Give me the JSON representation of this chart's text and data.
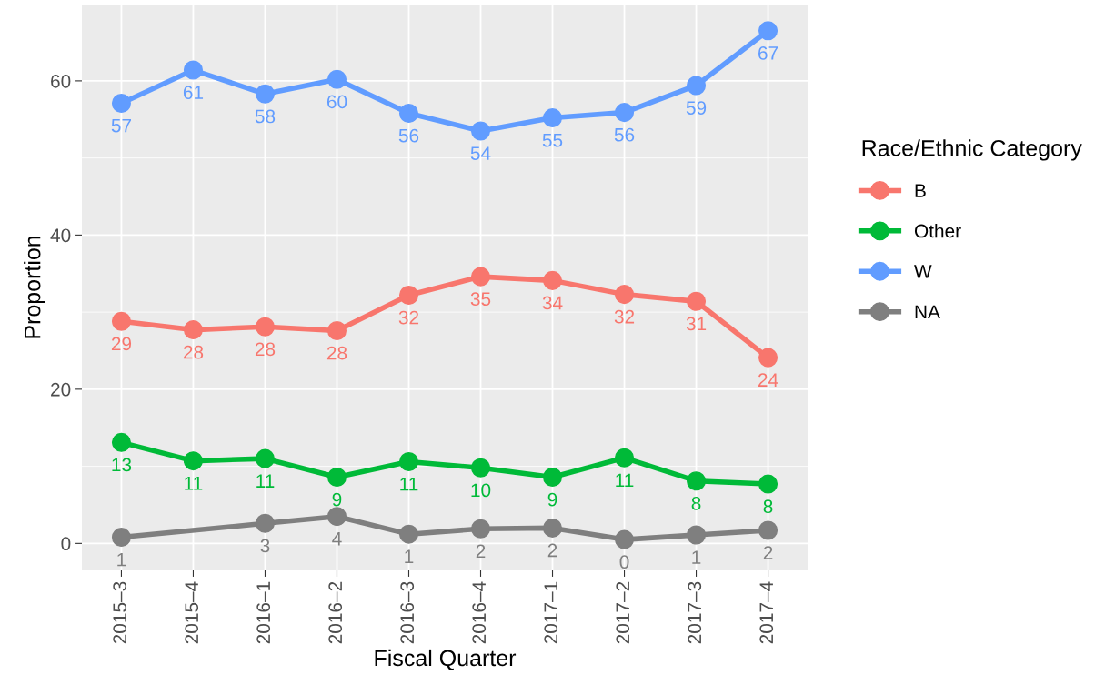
{
  "chart_data": {
    "type": "line",
    "xlabel": "Fiscal Quarter",
    "ylabel": "Proportion",
    "legend_title": "Race/Ethnic Category",
    "categories": [
      "2015–3",
      "2015–4",
      "2016–1",
      "2016–2",
      "2016–3",
      "2016–4",
      "2017–1",
      "2017–2",
      "2017–3",
      "2017–4"
    ],
    "series": [
      {
        "name": "B",
        "color": "#f8766d",
        "values": [
          28.8,
          27.7,
          28.1,
          27.6,
          32.2,
          34.6,
          34.1,
          32.3,
          31.4,
          24.1
        ],
        "value_labels": [
          "29",
          "28",
          "28",
          "28",
          "32",
          "35",
          "34",
          "32",
          "31",
          "24"
        ]
      },
      {
        "name": "Other",
        "color": "#00ba38",
        "values": [
          13.1,
          10.7,
          11.0,
          8.6,
          10.6,
          9.8,
          8.6,
          11.1,
          8.1,
          7.7
        ],
        "value_labels": [
          "13",
          "11",
          "11",
          "9",
          "11",
          "10",
          "9",
          "11",
          "8",
          "8"
        ]
      },
      {
        "name": "W",
        "color": "#619cff",
        "values": [
          57.1,
          61.4,
          58.3,
          60.2,
          55.8,
          53.5,
          55.2,
          55.9,
          59.4,
          66.5
        ],
        "value_labels": [
          "57",
          "61",
          "58",
          "60",
          "56",
          "54",
          "55",
          "56",
          "59",
          "67"
        ]
      },
      {
        "name": "NA",
        "color": "#7f7f7f",
        "values": [
          0.8,
          null,
          2.6,
          3.5,
          1.2,
          1.9,
          2.0,
          0.5,
          1.1,
          1.7
        ],
        "value_labels": [
          "1",
          null,
          "3",
          "4",
          "1",
          "2",
          "2",
          "0",
          "1",
          "2"
        ]
      }
    ],
    "ylim": [
      -3.5,
      69.9
    ],
    "yticks": [
      0,
      20,
      40,
      60
    ],
    "grid": true,
    "legend": "right",
    "marker": "circle",
    "line_style": "solid"
  }
}
